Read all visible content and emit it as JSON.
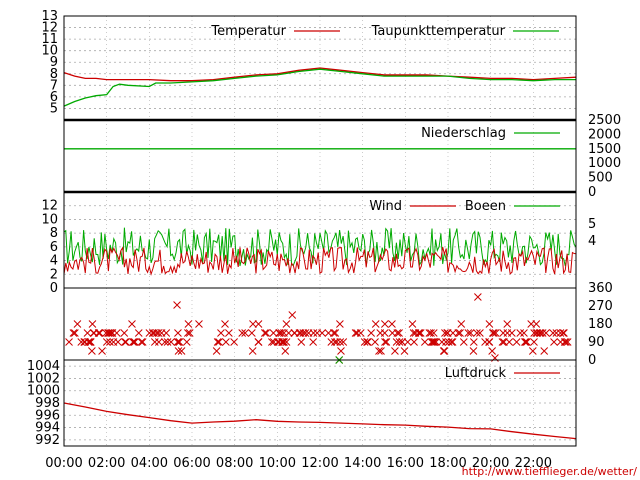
{
  "credit": "http://www.tiefflieger.de/wetter/",
  "colors": {
    "red": "#cc0000",
    "green": "#00aa00",
    "grid": "#aaaaaa",
    "axis": "#000000"
  },
  "x_axis": {
    "range_hours": [
      0,
      24
    ],
    "tick_labels": [
      "00:00",
      "02:00",
      "04:00",
      "06:00",
      "08:00",
      "10:00",
      "12:00",
      "14:00",
      "16:00",
      "18:00",
      "20:00",
      "22:00"
    ]
  },
  "chart_data": [
    {
      "type": "line",
      "legend_placement": "top-right",
      "ylim": [
        4,
        13
      ],
      "left_ticks": [
        "13",
        "12",
        "11",
        "10",
        "9",
        "8",
        "7",
        "6",
        "5"
      ],
      "series": [
        {
          "name": "Temperatur",
          "color": "#cc0000",
          "x": [
            0,
            0.5,
            1,
            1.5,
            2,
            3,
            4,
            5,
            6,
            7,
            8,
            9,
            10,
            11,
            12,
            13,
            14,
            15,
            16,
            17,
            18,
            19,
            20,
            21,
            22,
            23,
            24
          ],
          "y": [
            8.1,
            7.8,
            7.6,
            7.6,
            7.5,
            7.5,
            7.5,
            7.4,
            7.4,
            7.5,
            7.7,
            7.9,
            8.0,
            8.3,
            8.5,
            8.3,
            8.1,
            7.9,
            7.9,
            7.9,
            7.8,
            7.7,
            7.6,
            7.6,
            7.5,
            7.6,
            7.7
          ]
        },
        {
          "name": "Taupunkttemperatur",
          "color": "#00aa00",
          "x": [
            0,
            0.5,
            1,
            1.5,
            2,
            2.3,
            2.6,
            3,
            4,
            4.3,
            5,
            6,
            7,
            8,
            9,
            10,
            11,
            12,
            13,
            14,
            15,
            16,
            17,
            18,
            19,
            20,
            21,
            22,
            23,
            24
          ],
          "y": [
            5.2,
            5.6,
            5.9,
            6.1,
            6.2,
            6.9,
            7.1,
            7.0,
            6.9,
            7.2,
            7.2,
            7.3,
            7.4,
            7.6,
            7.8,
            7.9,
            8.2,
            8.4,
            8.2,
            8.0,
            7.8,
            7.8,
            7.8,
            7.8,
            7.6,
            7.5,
            7.5,
            7.4,
            7.5,
            7.5
          ]
        }
      ]
    },
    {
      "type": "line",
      "legend_placement": "top-right",
      "ylim": [
        0,
        2500
      ],
      "right_ticks": [
        "2500",
        "2000",
        "1500",
        "1000",
        "500",
        "0"
      ],
      "series": [
        {
          "name": "Niederschlag",
          "color": "#00aa00",
          "x": [
            0,
            24
          ],
          "y": [
            1500,
            1500
          ]
        }
      ]
    },
    {
      "type": "line",
      "legend_placement": "top-right",
      "ylim": [
        0,
        14
      ],
      "left_ticks": [
        "12",
        "10",
        "8",
        "6",
        "4",
        "2",
        "0"
      ],
      "right_ticks": [
        "5",
        "4"
      ],
      "series": [
        {
          "name": "Wind",
          "color": "#cc0000",
          "mean": 4.0,
          "amplitude": 2.0
        },
        {
          "name": "Boeen",
          "color": "#00aa00",
          "mean": 6.0,
          "amplitude": 2.8
        }
      ]
    },
    {
      "type": "scatter",
      "ylim": [
        0,
        360
      ],
      "right_ticks": [
        "360",
        "270",
        "180",
        "90",
        "0"
      ],
      "marker": "cross",
      "color": "#cc0000",
      "bands_deg": [
        180,
        135,
        90,
        45
      ],
      "band_weights": [
        0.08,
        0.45,
        0.4,
        0.07
      ],
      "outliers_deg": [
        [
          5.3,
          275
        ],
        [
          10.7,
          225
        ],
        [
          19.4,
          315
        ],
        [
          12.9,
          0
        ],
        [
          20.2,
          10
        ]
      ],
      "point_count": 230
    },
    {
      "type": "line",
      "legend_placement": "top-right",
      "ylim": [
        991,
        1005
      ],
      "left_ticks": [
        "1004",
        "1002",
        "1000",
        "998",
        "996",
        "994",
        "992"
      ],
      "series": [
        {
          "name": "Luftdruck",
          "color": "#cc0000",
          "x": [
            0,
            1,
            2,
            3,
            4,
            5,
            6,
            7,
            8,
            9,
            10,
            11,
            12,
            13,
            14,
            15,
            16,
            17,
            18,
            19,
            20,
            21,
            22,
            23,
            24
          ],
          "y": [
            998.0,
            997.3,
            996.6,
            996.0,
            995.6,
            995.2,
            994.8,
            995.0,
            995.1,
            995.2,
            995.0,
            994.9,
            994.8,
            994.7,
            994.6,
            994.4,
            994.4,
            994.2,
            994.0,
            993.8,
            993.7,
            993.4,
            992.9,
            992.6,
            992.2
          ]
        }
      ]
    }
  ]
}
